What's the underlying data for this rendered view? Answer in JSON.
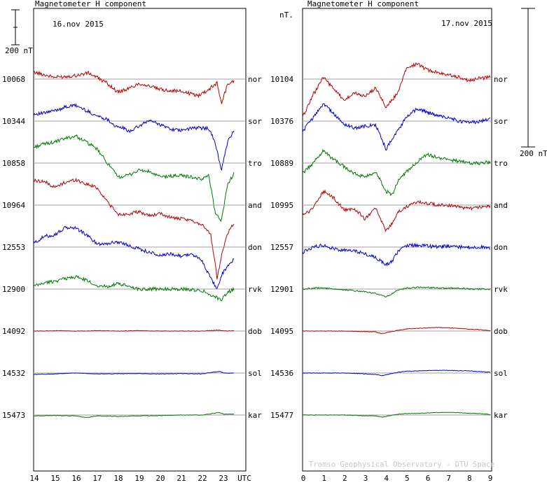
{
  "chart_data": [
    {
      "type": "line",
      "title": "Magnetometer H component",
      "date": "16.nov 2015",
      "xlabel": "UTC",
      "xticks": [
        "14",
        "15",
        "16",
        "17",
        "18",
        "19",
        "20",
        "21",
        "22",
        "23",
        "UTC"
      ],
      "xlim": [
        14,
        23
      ],
      "y_units": "nT",
      "scale_bar": "200 nT",
      "grid": true,
      "stations": [
        {
          "code": "nor",
          "baseline": "10068",
          "color": "#b40000",
          "x": [
            14,
            15,
            16,
            16.6,
            17,
            17.5,
            18,
            18.5,
            19,
            19.5,
            20,
            21,
            21.8,
            22.3,
            22.7,
            22.9,
            23.2,
            23.5
          ],
          "y": [
            40,
            10,
            20,
            35,
            10,
            -25,
            -75,
            -55,
            -25,
            -40,
            -60,
            -70,
            -95,
            -60,
            -20,
            -140,
            -30,
            -10
          ]
        },
        {
          "code": "sor",
          "baseline": "10344",
          "color": "#0000c8",
          "x": [
            14,
            14.5,
            15,
            15.5,
            16,
            16.5,
            17,
            17.5,
            18,
            18.2,
            18.5,
            19,
            19.5,
            20,
            20.5,
            21,
            21.5,
            22,
            22.3,
            22.6,
            22.9,
            23.2,
            23.5
          ],
          "y": [
            40,
            45,
            60,
            80,
            90,
            60,
            30,
            10,
            -40,
            -35,
            -60,
            -30,
            5,
            -20,
            -45,
            -55,
            -40,
            -40,
            -40,
            -120,
            -280,
            -120,
            -50
          ]
        },
        {
          "code": "tro",
          "baseline": "10858",
          "color": "#007800",
          "x": [
            14,
            14.5,
            15,
            15.5,
            16,
            16.5,
            17,
            17.5,
            18,
            18.5,
            19,
            19.5,
            20,
            20.5,
            21,
            21.5,
            22,
            22.3,
            22.6,
            22.9,
            23.2,
            23.5
          ],
          "y": [
            90,
            110,
            120,
            140,
            155,
            120,
            80,
            0,
            -80,
            -70,
            -40,
            -50,
            -80,
            -75,
            -70,
            -80,
            -95,
            -60,
            -280,
            -330,
            -120,
            -60
          ]
        },
        {
          "code": "and",
          "baseline": "10964",
          "color": "#b40000",
          "x": [
            14,
            14.5,
            15,
            15.5,
            16,
            16.5,
            17,
            17.5,
            18,
            18.5,
            19,
            19.5,
            20,
            20.5,
            21,
            21.5,
            22,
            22.4,
            22.7,
            22.9,
            23.2,
            23.5
          ],
          "y": [
            140,
            135,
            100,
            130,
            145,
            120,
            100,
            20,
            -55,
            -50,
            -40,
            -60,
            -50,
            -70,
            -80,
            -90,
            -110,
            -170,
            -420,
            -290,
            -160,
            -100
          ]
        },
        {
          "code": "don",
          "baseline": "12553",
          "color": "#0000c8",
          "x": [
            14,
            14.5,
            15,
            15.5,
            16,
            16.5,
            17,
            17.5,
            18,
            18.5,
            19,
            19.5,
            20,
            20.5,
            21,
            21.5,
            22,
            22.4,
            22.7,
            22.9,
            23.2,
            23.5
          ],
          "y": [
            20,
            60,
            70,
            110,
            110,
            70,
            20,
            20,
            30,
            10,
            -10,
            -30,
            -50,
            -40,
            -50,
            -40,
            -80,
            -180,
            -240,
            -160,
            -110,
            -70
          ]
        },
        {
          "code": "rvk",
          "baseline": "12900",
          "color": "#007800",
          "x": [
            14,
            14.5,
            15,
            15.5,
            16,
            16.5,
            17,
            17.5,
            18,
            18.5,
            19,
            19.5,
            20,
            20.5,
            21,
            21.5,
            22,
            22.3,
            22.6,
            22.9,
            23.2,
            23.5
          ],
          "y": [
            15,
            35,
            45,
            60,
            70,
            50,
            20,
            15,
            30,
            15,
            0,
            0,
            0,
            0,
            0,
            -5,
            -10,
            -25,
            -45,
            -60,
            -20,
            0
          ]
        },
        {
          "code": "dob",
          "baseline": "14092",
          "color": "#b40000",
          "x": [
            14,
            15,
            16,
            17,
            18,
            19,
            20,
            21,
            22,
            22.8,
            23,
            23.5
          ],
          "y": [
            0,
            2,
            0,
            2,
            0,
            2,
            0,
            0,
            0,
            5,
            0,
            2
          ]
        },
        {
          "code": "sol",
          "baseline": "14532",
          "color": "#0000c8",
          "x": [
            14,
            15,
            16,
            17,
            18,
            19,
            20,
            21,
            22,
            22.8,
            23,
            23.5
          ],
          "y": [
            -8,
            -5,
            0,
            -5,
            -4,
            -3,
            -5,
            -3,
            -5,
            10,
            0,
            0
          ]
        },
        {
          "code": "kar",
          "baseline": "15473",
          "color": "#007800",
          "x": [
            14,
            15,
            16,
            16.5,
            17,
            18,
            19,
            20,
            21,
            22,
            22.8,
            23,
            23.5
          ],
          "y": [
            -5,
            -3,
            -5,
            -15,
            -5,
            -8,
            -5,
            -3,
            0,
            0,
            15,
            5,
            5
          ]
        }
      ]
    },
    {
      "type": "line",
      "title": "Magnetometer H component",
      "date": "17.nov 2015",
      "xlabel": "",
      "xticks": [
        "0",
        "1",
        "2",
        "3",
        "4",
        "5",
        "6",
        "7",
        "8",
        "9"
      ],
      "xlim": [
        0,
        9
      ],
      "y_units": "nT.",
      "scale_bar": "200 nT",
      "grid": true,
      "stations": [
        {
          "code": "nor",
          "baseline": "10104",
          "color": "#b40000",
          "x": [
            0,
            0.5,
            1,
            1.5,
            2,
            2.5,
            3,
            3.5,
            4,
            4.3,
            4.6,
            5,
            5.5,
            6,
            6.5,
            7,
            7.5,
            8,
            8.5,
            9
          ],
          "y": [
            -220,
            -90,
            10,
            -60,
            -120,
            -80,
            -100,
            -50,
            -160,
            -120,
            -70,
            70,
            85,
            50,
            40,
            25,
            10,
            -10,
            5,
            10
          ]
        },
        {
          "code": "sor",
          "baseline": "10376",
          "color": "#0000c8",
          "x": [
            0,
            0.5,
            1,
            1.5,
            2,
            2.5,
            3,
            3.5,
            4,
            4.3,
            4.6,
            5,
            5.5,
            6,
            6.5,
            7,
            7.5,
            8,
            8.5,
            9
          ],
          "y": [
            -60,
            20,
            100,
            40,
            -20,
            -40,
            -30,
            -20,
            -160,
            -100,
            -50,
            30,
            70,
            50,
            30,
            20,
            0,
            -10,
            0,
            10
          ]
        },
        {
          "code": "tro",
          "baseline": "10889",
          "color": "#007800",
          "x": [
            0,
            0.5,
            1,
            1.5,
            2,
            2.5,
            3,
            3.5,
            4,
            4.3,
            4.6,
            5,
            5.5,
            6,
            6.5,
            7,
            7.5,
            8,
            8.5,
            9
          ],
          "y": [
            -60,
            0,
            70,
            20,
            -20,
            -60,
            -80,
            -50,
            -160,
            -180,
            -100,
            -50,
            10,
            50,
            30,
            20,
            10,
            0,
            0,
            5
          ]
        },
        {
          "code": "and",
          "baseline": "10995",
          "color": "#b40000",
          "x": [
            0,
            0.5,
            1,
            1.5,
            2,
            2.5,
            3,
            3.5,
            4,
            4.3,
            4.6,
            5,
            5.5,
            6,
            6.5,
            7,
            7.5,
            8,
            8.5,
            9
          ],
          "y": [
            -60,
            -20,
            80,
            40,
            -30,
            -20,
            -80,
            -20,
            -150,
            -100,
            -40,
            -10,
            20,
            10,
            0,
            0,
            -10,
            -20,
            -10,
            -10
          ]
        },
        {
          "code": "don",
          "baseline": "12557",
          "color": "#0000c8",
          "x": [
            0,
            0.5,
            1,
            1.5,
            2,
            2.5,
            3,
            3.5,
            4,
            4.3,
            4.6,
            5,
            5.5,
            6,
            6.5,
            7,
            7.5,
            8,
            8.5,
            9
          ],
          "y": [
            -30,
            0,
            10,
            -10,
            -20,
            -20,
            -40,
            -60,
            -100,
            -80,
            -20,
            10,
            10,
            5,
            0,
            5,
            0,
            0,
            0,
            -5
          ]
        },
        {
          "code": "rvk",
          "baseline": "12901",
          "color": "#007800",
          "x": [
            0,
            0.5,
            1,
            1.5,
            2,
            2.5,
            3,
            3.5,
            4,
            4.3,
            4.6,
            5,
            5.5,
            6,
            6.5,
            7,
            7.5,
            8,
            8.5,
            9
          ],
          "y": [
            0,
            5,
            5,
            0,
            -5,
            -10,
            -15,
            -25,
            -45,
            -25,
            -5,
            5,
            10,
            10,
            5,
            5,
            5,
            0,
            0,
            0
          ]
        },
        {
          "code": "dob",
          "baseline": "14095",
          "color": "#b40000",
          "x": [
            0,
            1,
            2,
            2.5,
            3,
            3.5,
            3.8,
            4.2,
            4.6,
            5,
            5.5,
            6,
            6.5,
            7,
            7.5,
            8,
            8.5,
            9
          ],
          "y": [
            0,
            0,
            0,
            -2,
            -3,
            -5,
            -15,
            -5,
            5,
            12,
            15,
            18,
            20,
            18,
            15,
            10,
            8,
            2
          ]
        },
        {
          "code": "sol",
          "baseline": "14536",
          "color": "#0000c8",
          "x": [
            0,
            1,
            2,
            2.5,
            3,
            3.5,
            3.8,
            4.2,
            4.6,
            5,
            5.5,
            6,
            6.5,
            7,
            7.5,
            8,
            8.5,
            9
          ],
          "y": [
            0,
            0,
            0,
            -2,
            -5,
            -8,
            -15,
            -5,
            5,
            10,
            12,
            14,
            15,
            15,
            13,
            12,
            8,
            5
          ]
        },
        {
          "code": "kar",
          "baseline": "15477",
          "color": "#007800",
          "x": [
            0,
            1,
            2,
            2.5,
            3,
            3.5,
            3.8,
            4.2,
            4.6,
            5,
            5.5,
            6,
            6.5,
            7,
            7.5,
            8,
            8.5,
            9
          ],
          "y": [
            0,
            0,
            0,
            -2,
            -5,
            -5,
            -12,
            -3,
            5,
            8,
            10,
            12,
            14,
            15,
            13,
            10,
            8,
            3
          ]
        }
      ]
    }
  ],
  "watermark": "Tromso Geophysical Observatory - DTU Space",
  "colors": {
    "red": "#b40000",
    "blue": "#0000c8",
    "green": "#007800",
    "grid": "#a0a0a0"
  }
}
